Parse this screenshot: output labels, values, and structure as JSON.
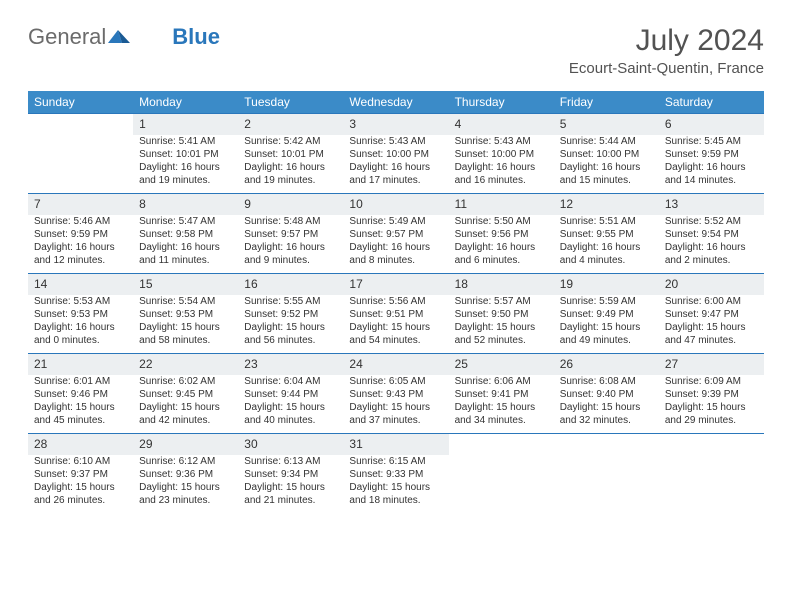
{
  "brand": {
    "word1": "General",
    "word2": "Blue",
    "word1_color": "#6b6b6b",
    "word2_color": "#2a77bb",
    "shape_color": "#2a77bb"
  },
  "header": {
    "month_year": "July 2024",
    "location": "Ecourt-Saint-Quentin, France",
    "text_color": "#525252"
  },
  "calendar": {
    "header_bg": "#3b8bc8",
    "header_text_color": "#ffffff",
    "daynum_bg": "#eceff1",
    "row_sep_color": "#2a77bb",
    "days": [
      "Sunday",
      "Monday",
      "Tuesday",
      "Wednesday",
      "Thursday",
      "Friday",
      "Saturday"
    ],
    "weeks": [
      [
        {
          "n": "",
          "sr": "",
          "ss": "",
          "dl": ""
        },
        {
          "n": "1",
          "sr": "Sunrise: 5:41 AM",
          "ss": "Sunset: 10:01 PM",
          "dl": "Daylight: 16 hours and 19 minutes."
        },
        {
          "n": "2",
          "sr": "Sunrise: 5:42 AM",
          "ss": "Sunset: 10:01 PM",
          "dl": "Daylight: 16 hours and 19 minutes."
        },
        {
          "n": "3",
          "sr": "Sunrise: 5:43 AM",
          "ss": "Sunset: 10:00 PM",
          "dl": "Daylight: 16 hours and 17 minutes."
        },
        {
          "n": "4",
          "sr": "Sunrise: 5:43 AM",
          "ss": "Sunset: 10:00 PM",
          "dl": "Daylight: 16 hours and 16 minutes."
        },
        {
          "n": "5",
          "sr": "Sunrise: 5:44 AM",
          "ss": "Sunset: 10:00 PM",
          "dl": "Daylight: 16 hours and 15 minutes."
        },
        {
          "n": "6",
          "sr": "Sunrise: 5:45 AM",
          "ss": "Sunset: 9:59 PM",
          "dl": "Daylight: 16 hours and 14 minutes."
        }
      ],
      [
        {
          "n": "7",
          "sr": "Sunrise: 5:46 AM",
          "ss": "Sunset: 9:59 PM",
          "dl": "Daylight: 16 hours and 12 minutes."
        },
        {
          "n": "8",
          "sr": "Sunrise: 5:47 AM",
          "ss": "Sunset: 9:58 PM",
          "dl": "Daylight: 16 hours and 11 minutes."
        },
        {
          "n": "9",
          "sr": "Sunrise: 5:48 AM",
          "ss": "Sunset: 9:57 PM",
          "dl": "Daylight: 16 hours and 9 minutes."
        },
        {
          "n": "10",
          "sr": "Sunrise: 5:49 AM",
          "ss": "Sunset: 9:57 PM",
          "dl": "Daylight: 16 hours and 8 minutes."
        },
        {
          "n": "11",
          "sr": "Sunrise: 5:50 AM",
          "ss": "Sunset: 9:56 PM",
          "dl": "Daylight: 16 hours and 6 minutes."
        },
        {
          "n": "12",
          "sr": "Sunrise: 5:51 AM",
          "ss": "Sunset: 9:55 PM",
          "dl": "Daylight: 16 hours and 4 minutes."
        },
        {
          "n": "13",
          "sr": "Sunrise: 5:52 AM",
          "ss": "Sunset: 9:54 PM",
          "dl": "Daylight: 16 hours and 2 minutes."
        }
      ],
      [
        {
          "n": "14",
          "sr": "Sunrise: 5:53 AM",
          "ss": "Sunset: 9:53 PM",
          "dl": "Daylight: 16 hours and 0 minutes."
        },
        {
          "n": "15",
          "sr": "Sunrise: 5:54 AM",
          "ss": "Sunset: 9:53 PM",
          "dl": "Daylight: 15 hours and 58 minutes."
        },
        {
          "n": "16",
          "sr": "Sunrise: 5:55 AM",
          "ss": "Sunset: 9:52 PM",
          "dl": "Daylight: 15 hours and 56 minutes."
        },
        {
          "n": "17",
          "sr": "Sunrise: 5:56 AM",
          "ss": "Sunset: 9:51 PM",
          "dl": "Daylight: 15 hours and 54 minutes."
        },
        {
          "n": "18",
          "sr": "Sunrise: 5:57 AM",
          "ss": "Sunset: 9:50 PM",
          "dl": "Daylight: 15 hours and 52 minutes."
        },
        {
          "n": "19",
          "sr": "Sunrise: 5:59 AM",
          "ss": "Sunset: 9:49 PM",
          "dl": "Daylight: 15 hours and 49 minutes."
        },
        {
          "n": "20",
          "sr": "Sunrise: 6:00 AM",
          "ss": "Sunset: 9:47 PM",
          "dl": "Daylight: 15 hours and 47 minutes."
        }
      ],
      [
        {
          "n": "21",
          "sr": "Sunrise: 6:01 AM",
          "ss": "Sunset: 9:46 PM",
          "dl": "Daylight: 15 hours and 45 minutes."
        },
        {
          "n": "22",
          "sr": "Sunrise: 6:02 AM",
          "ss": "Sunset: 9:45 PM",
          "dl": "Daylight: 15 hours and 42 minutes."
        },
        {
          "n": "23",
          "sr": "Sunrise: 6:04 AM",
          "ss": "Sunset: 9:44 PM",
          "dl": "Daylight: 15 hours and 40 minutes."
        },
        {
          "n": "24",
          "sr": "Sunrise: 6:05 AM",
          "ss": "Sunset: 9:43 PM",
          "dl": "Daylight: 15 hours and 37 minutes."
        },
        {
          "n": "25",
          "sr": "Sunrise: 6:06 AM",
          "ss": "Sunset: 9:41 PM",
          "dl": "Daylight: 15 hours and 34 minutes."
        },
        {
          "n": "26",
          "sr": "Sunrise: 6:08 AM",
          "ss": "Sunset: 9:40 PM",
          "dl": "Daylight: 15 hours and 32 minutes."
        },
        {
          "n": "27",
          "sr": "Sunrise: 6:09 AM",
          "ss": "Sunset: 9:39 PM",
          "dl": "Daylight: 15 hours and 29 minutes."
        }
      ],
      [
        {
          "n": "28",
          "sr": "Sunrise: 6:10 AM",
          "ss": "Sunset: 9:37 PM",
          "dl": "Daylight: 15 hours and 26 minutes."
        },
        {
          "n": "29",
          "sr": "Sunrise: 6:12 AM",
          "ss": "Sunset: 9:36 PM",
          "dl": "Daylight: 15 hours and 23 minutes."
        },
        {
          "n": "30",
          "sr": "Sunrise: 6:13 AM",
          "ss": "Sunset: 9:34 PM",
          "dl": "Daylight: 15 hours and 21 minutes."
        },
        {
          "n": "31",
          "sr": "Sunrise: 6:15 AM",
          "ss": "Sunset: 9:33 PM",
          "dl": "Daylight: 15 hours and 18 minutes."
        },
        {
          "n": "",
          "sr": "",
          "ss": "",
          "dl": ""
        },
        {
          "n": "",
          "sr": "",
          "ss": "",
          "dl": ""
        },
        {
          "n": "",
          "sr": "",
          "ss": "",
          "dl": ""
        }
      ]
    ]
  }
}
